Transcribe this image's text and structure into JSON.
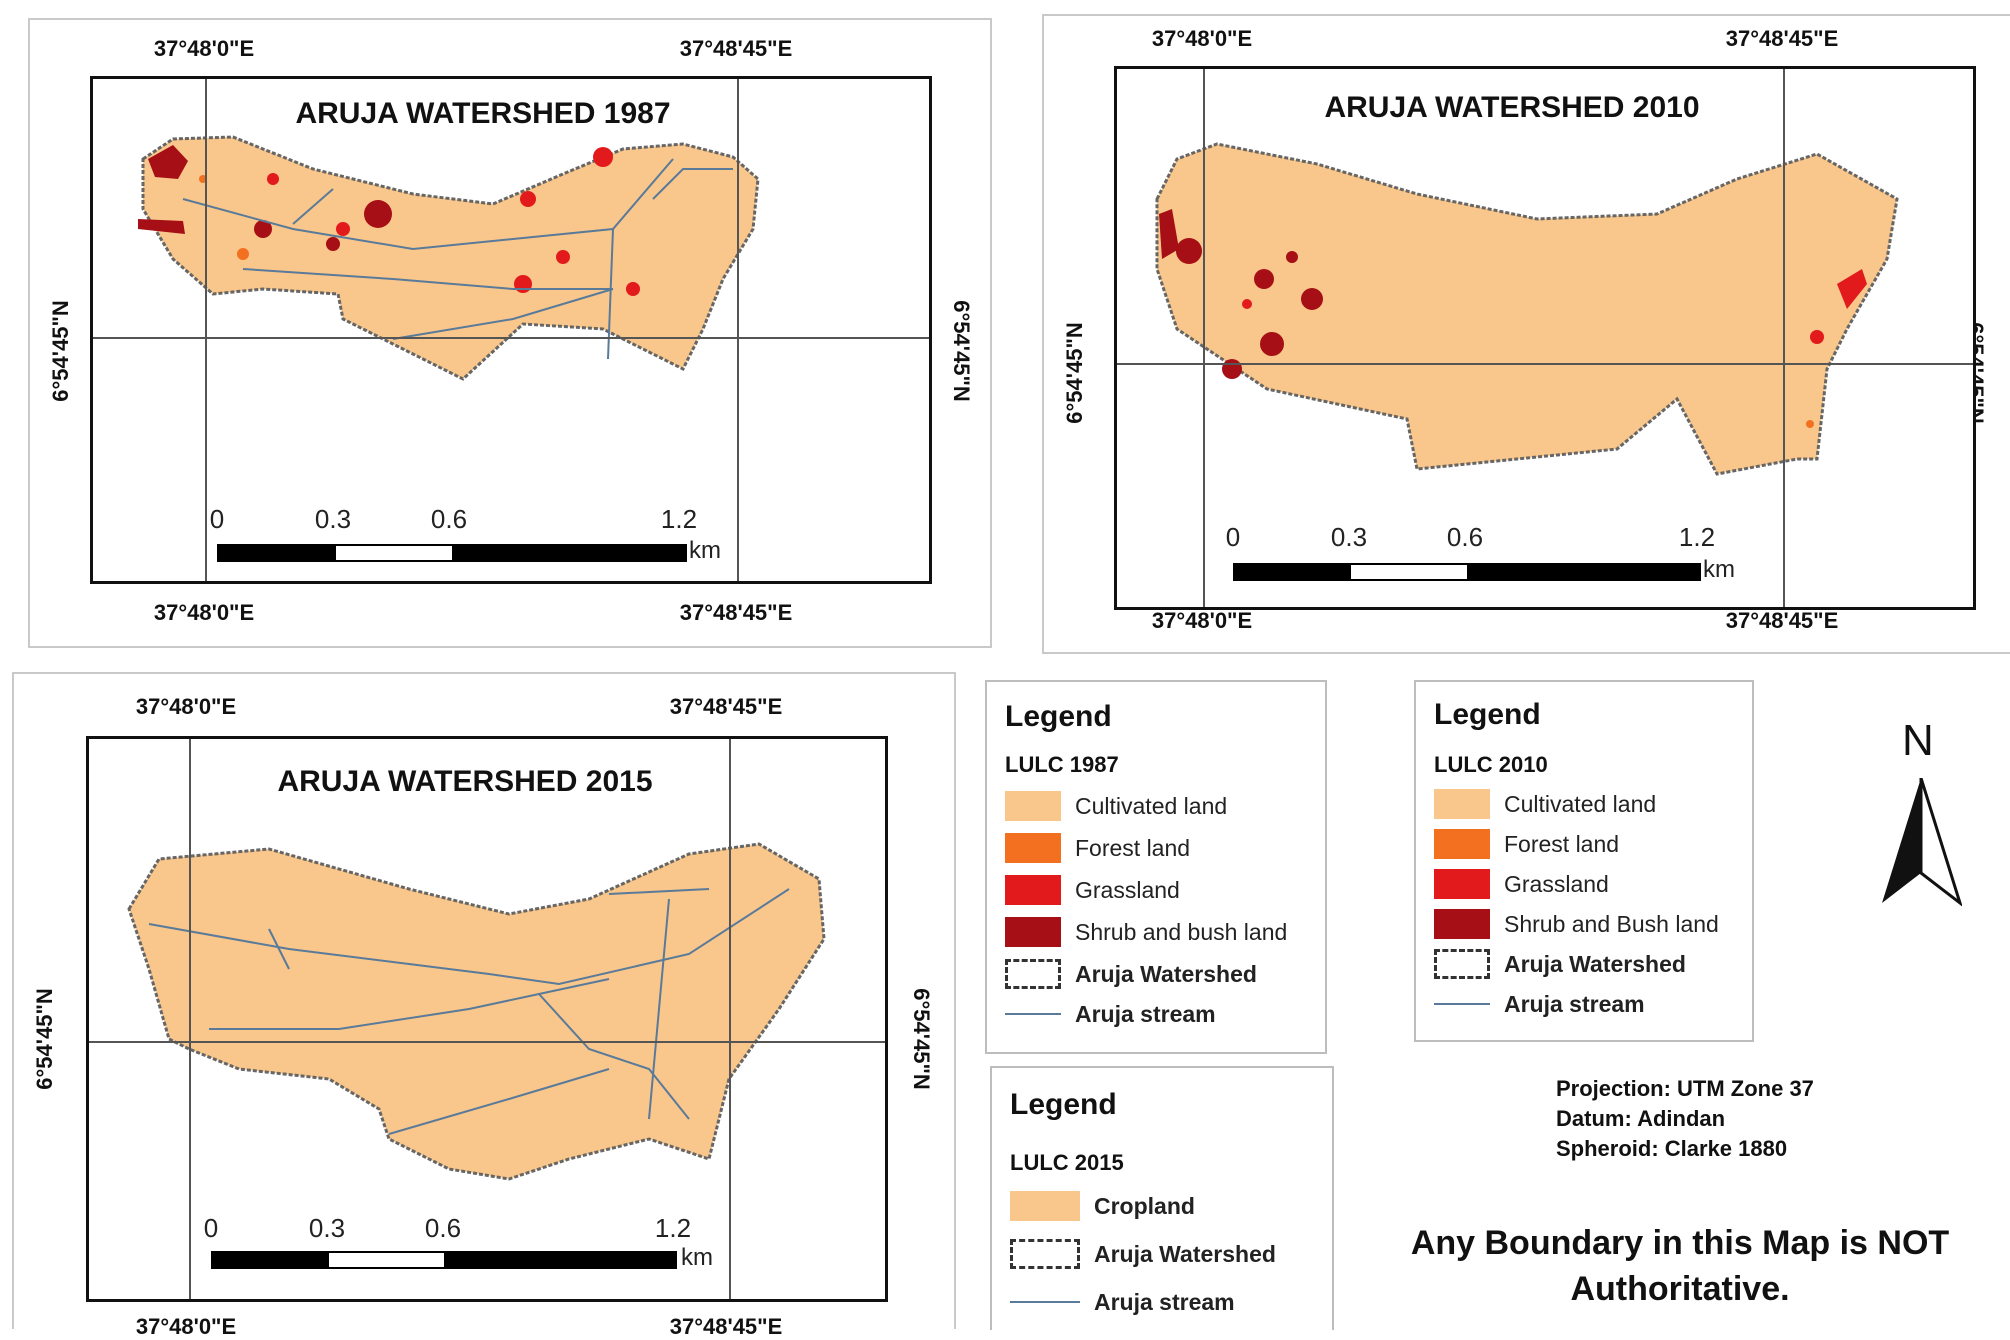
{
  "maps": {
    "m1987": {
      "title": "ARUJA WATERSHED 1987",
      "lon_left": "37°48'0\"E",
      "lon_right": "37°48'45\"E",
      "lat": "6°54'45\"N",
      "scale": [
        "0",
        "0.3",
        "0.6",
        "1.2"
      ],
      "unit": "km"
    },
    "m2010": {
      "title": "ARUJA WATERSHED 2010",
      "lon_left": "37°48'0\"E",
      "lon_right": "37°48'45\"E",
      "lat": "6°54'45\"N",
      "scale": [
        "0",
        "0.3",
        "0.6",
        "1.2"
      ],
      "unit": "km"
    },
    "m2015": {
      "title": "ARUJA WATERSHED 2015",
      "lon_left": "37°48'0\"E",
      "lon_right": "37°48'45\"E",
      "lat": "6°54'45\"N",
      "scale": [
        "0",
        "0.3",
        "0.6",
        "1.2"
      ],
      "unit": "km"
    }
  },
  "legend1987": {
    "title": "Legend",
    "subtitle": "LULC 1987",
    "items": [
      "Cultivated land",
      "Forest land",
      "Grassland",
      "Shrub and bush land",
      "Aruja Watershed",
      "Aruja stream"
    ]
  },
  "legend2010": {
    "title": "Legend",
    "subtitle": "LULC 2010",
    "items": [
      "Cultivated land",
      "Forest land",
      "Grassland",
      "Shrub and Bush land",
      "Aruja Watershed",
      "Aruja stream"
    ]
  },
  "legend2015": {
    "title": "Legend",
    "subtitle": "LULC 2015",
    "items": [
      "Cropland",
      "Aruja Watershed",
      "Aruja stream"
    ]
  },
  "north": "N",
  "projection": {
    "line1": "Projection: UTM Zone 37",
    "line2": "Datum: Adindan",
    "line3": "Spheroid: Clarke 1880"
  },
  "disclaimer": "Any Boundary in this Map is NOT Authoritative.",
  "colors": {
    "cultivated": "#f9c78b",
    "forest": "#f37021",
    "grassland": "#e31a1c",
    "shrub": "#a50f15",
    "stream": "#5a7a9a"
  }
}
